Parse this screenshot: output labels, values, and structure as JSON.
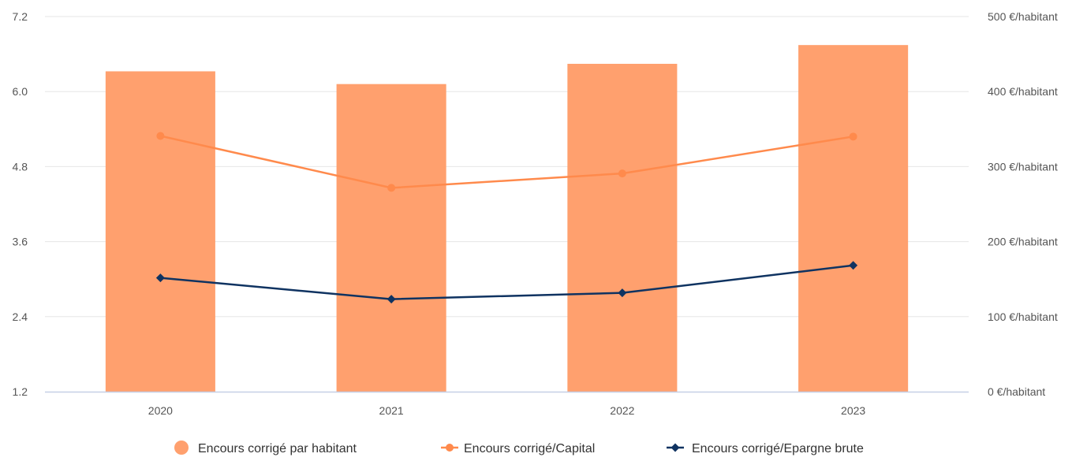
{
  "chart_data": {
    "type": "bar",
    "categories": [
      "2020",
      "2021",
      "2022",
      "2023"
    ],
    "series": [
      {
        "name": "Encours corrigé par habitant",
        "type": "bar",
        "axis": "right",
        "values": [
          427,
          410,
          437,
          462
        ],
        "color": "#FFA06E"
      },
      {
        "name": "Encours corrigé/Capital",
        "type": "line",
        "axis": "left",
        "values": [
          5.29,
          4.46,
          4.69,
          5.28
        ],
        "color": "#FF8A4C"
      },
      {
        "name": "Encours corrigé/Epargne brute",
        "type": "line",
        "axis": "left",
        "values": [
          3.02,
          2.68,
          2.78,
          3.22
        ],
        "color": "#0F3361"
      }
    ],
    "y_left": {
      "ylim": [
        1.2,
        7.2
      ],
      "ticks": [
        "1.2",
        "2.4",
        "3.6",
        "4.8",
        "6.0",
        "7.2"
      ]
    },
    "y_right": {
      "ylim": [
        0,
        500
      ],
      "ticks": [
        "0 €/habitant",
        "100 €/habitant",
        "200 €/habitant",
        "300 €/habitant",
        "400 €/habitant",
        "500 €/habitant"
      ]
    },
    "grid": true,
    "legend_position": "bottom-center"
  }
}
